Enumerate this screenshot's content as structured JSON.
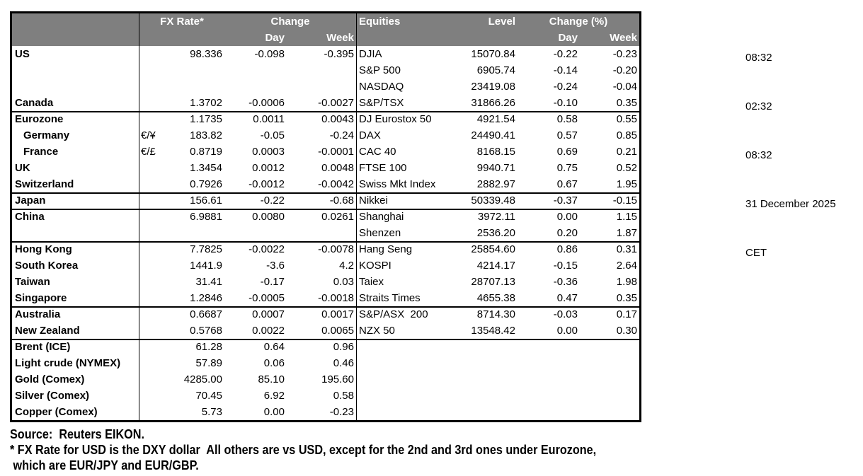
{
  "meta": {
    "time_fx": "08:32",
    "time_asia": "02:32",
    "time_equities": "08:32",
    "date": "31 December 2025",
    "timezone": "CET"
  },
  "colors": {
    "header_bg": "#7f7f7f",
    "header_text": "#ffffff",
    "border": "#000000"
  },
  "table": {
    "fx_header": {
      "rate": "FX Rate*",
      "change": "Change",
      "day": "Day",
      "week": "Week"
    },
    "eq_header": {
      "equities": "Equities",
      "level": "Level",
      "change_pct": "Change (%)",
      "day": "Day",
      "week": "Week"
    },
    "rows": [
      {
        "fx_label": "US",
        "pair": "",
        "rate": "98.336",
        "day": "-0.098",
        "week": "-0.395",
        "eq": "DJIA",
        "level": "15070.84",
        "eq_day": "-0.22",
        "eq_week": "-0.23",
        "section": false,
        "indent": false
      },
      {
        "fx_label": "",
        "pair": "",
        "rate": "",
        "day": "",
        "week": "",
        "eq": "S&P 500",
        "level": "6905.74",
        "eq_day": "-0.14",
        "eq_week": "-0.20",
        "section": false,
        "indent": false
      },
      {
        "fx_label": "",
        "pair": "",
        "rate": "",
        "day": "",
        "week": "",
        "eq": "NASDAQ",
        "level": "23419.08",
        "eq_day": "-0.24",
        "eq_week": "-0.04",
        "section": false,
        "indent": false
      },
      {
        "fx_label": "Canada",
        "pair": "",
        "rate": "1.3702",
        "day": "-0.0006",
        "week": "-0.0027",
        "eq": "S&P/TSX",
        "level": "31866.26",
        "eq_day": "-0.10",
        "eq_week": "0.35",
        "section": false,
        "indent": false
      },
      {
        "fx_label": "Eurozone",
        "pair": "",
        "rate": "1.1735",
        "day": "0.0011",
        "week": "0.0043",
        "eq": "DJ Eurostox 50",
        "level": "4921.54",
        "eq_day": "0.58",
        "eq_week": "0.55",
        "section": true,
        "indent": false
      },
      {
        "fx_label": "Germany",
        "pair": "€/¥",
        "rate": "183.82",
        "day": "-0.05",
        "week": "-0.24",
        "eq": "DAX",
        "level": "24490.41",
        "eq_day": "0.57",
        "eq_week": "0.85",
        "section": false,
        "indent": true
      },
      {
        "fx_label": "France",
        "pair": "€/£",
        "rate": "0.8719",
        "day": "0.0003",
        "week": "-0.0001",
        "eq": "CAC 40",
        "level": "8168.15",
        "eq_day": "0.69",
        "eq_week": "0.21",
        "section": false,
        "indent": true
      },
      {
        "fx_label": "UK",
        "pair": "",
        "rate": "1.3454",
        "day": "0.0012",
        "week": "0.0048",
        "eq": "FTSE 100",
        "level": "9940.71",
        "eq_day": "0.75",
        "eq_week": "0.52",
        "section": false,
        "indent": false
      },
      {
        "fx_label": "Switzerland",
        "pair": "",
        "rate": "0.7926",
        "day": "-0.0012",
        "week": "-0.0042",
        "eq": "Swiss Mkt Index",
        "level": "2882.97",
        "eq_day": "0.67",
        "eq_week": "1.95",
        "section": false,
        "indent": false
      },
      {
        "fx_label": "Japan",
        "pair": "",
        "rate": "156.61",
        "day": "-0.22",
        "week": "-0.68",
        "eq": "Nikkei",
        "level": "50339.48",
        "eq_day": "-0.37",
        "eq_week": "-0.15",
        "section": true,
        "indent": false
      },
      {
        "fx_label": "China",
        "pair": "",
        "rate": "6.9881",
        "day": "0.0080",
        "week": "0.0261",
        "eq": "Shanghai",
        "level": "3972.11",
        "eq_day": "0.00",
        "eq_week": "1.15",
        "section": true,
        "indent": false
      },
      {
        "fx_label": "",
        "pair": "",
        "rate": "",
        "day": "",
        "week": "",
        "eq": "Shenzen",
        "level": "2536.20",
        "eq_day": "0.20",
        "eq_week": "1.87",
        "section": false,
        "indent": false
      },
      {
        "fx_label": "Hong Kong",
        "pair": "",
        "rate": "7.7825",
        "day": "-0.0022",
        "week": "-0.0078",
        "eq": "Hang Seng",
        "level": "25854.60",
        "eq_day": "0.86",
        "eq_week": "0.31",
        "section": true,
        "indent": false
      },
      {
        "fx_label": "South Korea",
        "pair": "",
        "rate": "1441.9",
        "day": "-3.6",
        "week": "4.2",
        "eq": "KOSPI",
        "level": "4214.17",
        "eq_day": "-0.15",
        "eq_week": "2.64",
        "section": false,
        "indent": false
      },
      {
        "fx_label": "Taiwan",
        "pair": "",
        "rate": "31.41",
        "day": "-0.17",
        "week": "0.03",
        "eq": "Taiex",
        "level": "28707.13",
        "eq_day": "-0.36",
        "eq_week": "1.98",
        "section": false,
        "indent": false
      },
      {
        "fx_label": "Singapore",
        "pair": "",
        "rate": "1.2846",
        "day": "-0.0005",
        "week": "-0.0018",
        "eq": "Straits Times",
        "level": "4655.38",
        "eq_day": "0.47",
        "eq_week": "0.35",
        "section": false,
        "indent": false
      },
      {
        "fx_label": "Australia",
        "pair": "",
        "rate": "0.6687",
        "day": "0.0007",
        "week": "0.0017",
        "eq": "S&P/ASX  200",
        "level": "8714.30",
        "eq_day": "-0.03",
        "eq_week": "0.17",
        "section": true,
        "indent": false
      },
      {
        "fx_label": "New Zealand",
        "pair": "",
        "rate": "0.5768",
        "day": "0.0022",
        "week": "0.0065",
        "eq": "NZX 50",
        "level": "13548.42",
        "eq_day": "0.00",
        "eq_week": "0.30",
        "section": false,
        "indent": false
      },
      {
        "fx_label": "Brent (ICE)",
        "pair": "",
        "rate": "61.28",
        "day": "0.64",
        "week": "0.96",
        "eq": "",
        "level": "",
        "eq_day": "",
        "eq_week": "",
        "section": true,
        "indent": false
      },
      {
        "fx_label": "Light crude (NYMEX)",
        "pair": "",
        "rate": "57.89",
        "day": "0.06",
        "week": "0.46",
        "eq": "",
        "level": "",
        "eq_day": "",
        "eq_week": "",
        "section": false,
        "indent": false
      },
      {
        "fx_label": "Gold (Comex)",
        "pair": "",
        "rate": "4285.00",
        "day": "85.10",
        "week": "195.60",
        "eq": "",
        "level": "",
        "eq_day": "",
        "eq_week": "",
        "section": false,
        "indent": false
      },
      {
        "fx_label": "Silver (Comex)",
        "pair": "",
        "rate": "70.45",
        "day": "6.92",
        "week": "0.58",
        "eq": "",
        "level": "",
        "eq_day": "",
        "eq_week": "",
        "section": false,
        "indent": false
      },
      {
        "fx_label": "Copper (Comex)",
        "pair": "",
        "rate": "5.73",
        "day": "0.00",
        "week": "-0.23",
        "eq": "",
        "level": "",
        "eq_day": "",
        "eq_week": "",
        "section": false,
        "indent": false
      }
    ]
  },
  "footer": {
    "source": "Source:  Reuters EIKON.",
    "note_line1": "* FX Rate for USD is the DXY dollar  All others are vs USD, except for the 2nd and 3rd ones under Eurozone,",
    "note_line2": " which are EUR/JPY and EUR/GBP."
  }
}
